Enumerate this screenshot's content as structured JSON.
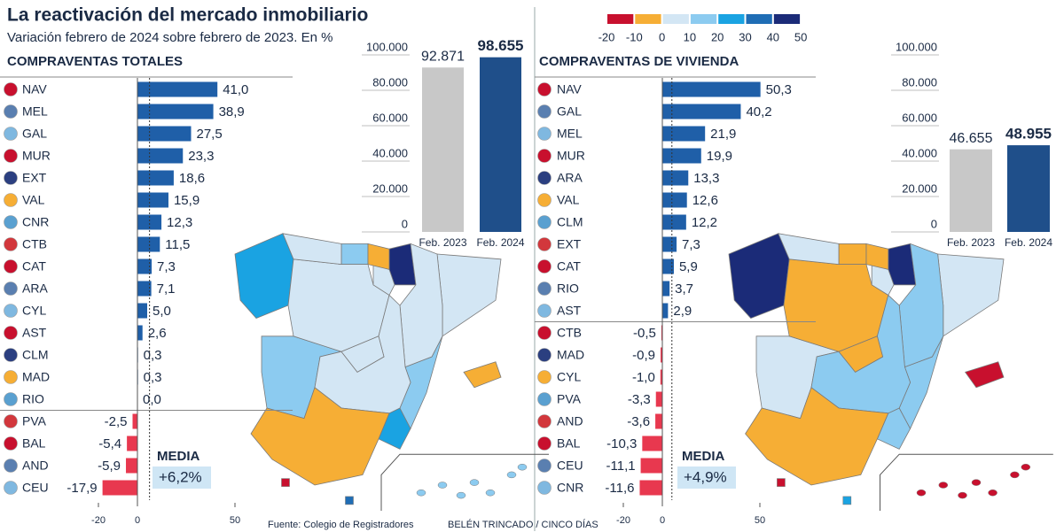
{
  "title": "La reactivación del mercado inmobiliario",
  "subtitle": "Variación febrero de 2024 sobre febrero de 2023. En %",
  "source": "Fuente: Colegio de Registradores",
  "credit": "BELÉN TRINCADO / CINCO DÍAS",
  "color_scale": {
    "colors": [
      "#c8102e",
      "#f6ae35",
      "#d3e6f4",
      "#8ccbf0",
      "#1aa3e2",
      "#1f6db5",
      "#1b2b78"
    ],
    "ticks": [
      -20,
      -10,
      0,
      10,
      20,
      30,
      40,
      50
    ]
  },
  "chart_data": [
    {
      "type": "bar",
      "title": "COMPRAVENTAS TOTALES",
      "categories": [
        "NAV",
        "MEL",
        "GAL",
        "MUR",
        "EXT",
        "VAL",
        "CNR",
        "CTB",
        "CAT",
        "ARA",
        "CYL",
        "AST",
        "CLM",
        "MAD",
        "RIO",
        "PVA",
        "BAL",
        "AND",
        "CEU"
      ],
      "values": [
        41.0,
        38.9,
        27.5,
        23.3,
        18.6,
        15.9,
        12.3,
        11.5,
        7.3,
        7.1,
        5.0,
        2.6,
        0.3,
        0.3,
        0.0,
        -2.5,
        -5.4,
        -5.9,
        -17.9
      ],
      "value_labels": [
        "41,0",
        "38,9",
        "27,5",
        "23,3",
        "18,6",
        "15,9",
        "12,3",
        "11,5",
        "7,3",
        "7,1",
        "5,0",
        "2,6",
        "0,3",
        "0,3",
        "0,0",
        "-2,5",
        "-5,4",
        "-5,9",
        "-17,9"
      ],
      "positive_color": "#1f5fa8",
      "negative_color": "#e8384f",
      "xlim": [
        -25,
        55
      ],
      "xticks": [
        -20,
        0,
        50
      ],
      "average_title": "MEDIA",
      "average": 6.2,
      "average_label": "+6,2%"
    },
    {
      "type": "column",
      "categories": [
        "Feb. 2023",
        "Feb. 2024"
      ],
      "values": [
        92871,
        98655
      ],
      "value_labels": [
        "92.871",
        "98.655"
      ],
      "colors": [
        "#c8c8c8",
        "#1f4f8a"
      ],
      "ylim": [
        0,
        100000
      ],
      "yticks": [
        0,
        {
          "value": 20000,
          "label": "20.000"
        },
        {
          "value": 40000,
          "label": "40.000"
        },
        {
          "value": 60000,
          "label": "60.000"
        },
        {
          "value": 80000,
          "label": "80.000"
        },
        {
          "value": 100000,
          "label": "100.000"
        }
      ]
    },
    {
      "type": "bar",
      "title": "COMPRAVENTAS DE VIVIENDA",
      "categories": [
        "NAV",
        "GAL",
        "MEL",
        "MUR",
        "ARA",
        "VAL",
        "CLM",
        "EXT",
        "CAT",
        "RIO",
        "AST",
        "CTB",
        "MAD",
        "CYL",
        "PVA",
        "AND",
        "BAL",
        "CEU",
        "CNR"
      ],
      "values": [
        50.3,
        40.2,
        21.9,
        19.9,
        13.3,
        12.6,
        12.2,
        7.3,
        5.9,
        3.7,
        2.9,
        -0.5,
        -0.9,
        -1.0,
        -3.3,
        -3.6,
        -10.3,
        -11.1,
        -11.6
      ],
      "value_labels": [
        "50,3",
        "40,2",
        "21,9",
        "19,9",
        "13,3",
        "12,6",
        "12,2",
        "7,3",
        "5,9",
        "3,7",
        "2,9",
        "-0,5",
        "-0,9",
        "-1,0",
        "-3,3",
        "-3,6",
        "-10,3",
        "-11,1",
        "-11,6"
      ],
      "positive_color": "#1f5fa8",
      "negative_color": "#e8384f",
      "xlim": [
        -25,
        55
      ],
      "xticks": [
        -20,
        0,
        50
      ],
      "average_title": "MEDIA",
      "average": 4.9,
      "average_label": "+4,9%"
    },
    {
      "type": "column",
      "categories": [
        "Feb. 2023",
        "Feb. 2024"
      ],
      "values": [
        46655,
        48955
      ],
      "value_labels": [
        "46.655",
        "48.955"
      ],
      "colors": [
        "#c8c8c8",
        "#1f4f8a"
      ],
      "ylim": [
        0,
        100000
      ],
      "yticks": [
        0,
        {
          "value": 20000,
          "label": "20.000"
        },
        {
          "value": 40000,
          "label": "40.000"
        },
        {
          "value": 60000,
          "label": "60.000"
        },
        {
          "value": 80000,
          "label": "80.000"
        },
        {
          "value": 100000,
          "label": "100.000"
        }
      ]
    }
  ]
}
